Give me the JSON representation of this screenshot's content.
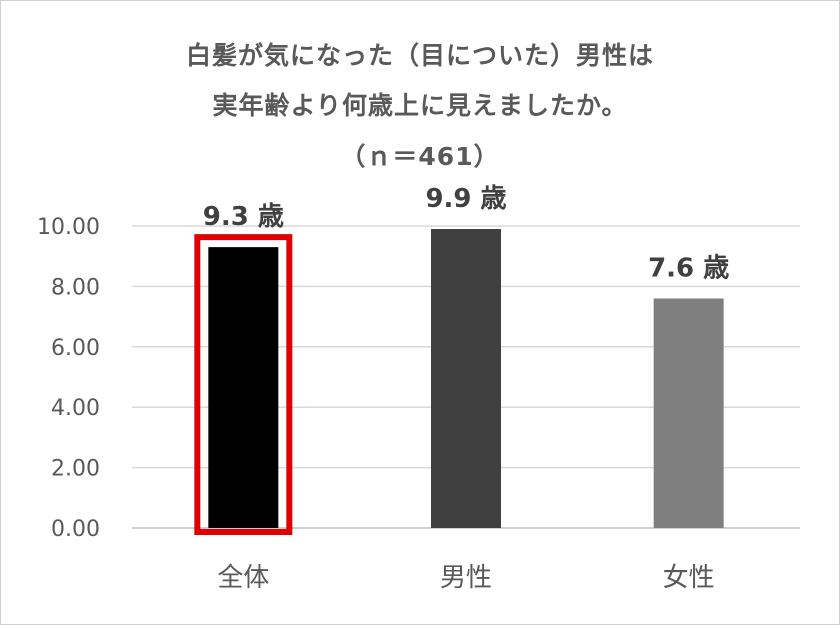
{
  "chart_data": {
    "type": "bar",
    "title_lines": [
      "白髪が気になった（目についた）男性は",
      "実年齢より何歳上に見えましたか。",
      "（ｎ＝461）"
    ],
    "categories": [
      "全体",
      "男性",
      "女性"
    ],
    "values": [
      9.3,
      9.9,
      7.6
    ],
    "data_labels": [
      "9.3 歳",
      "9.9 歳",
      "7.6 歳"
    ],
    "bar_colors": [
      "#000000",
      "#404040",
      "#7f7f7f"
    ],
    "highlight": {
      "category": "全体",
      "color": "#e00000"
    },
    "ylim": [
      0,
      10
    ],
    "yticks": [
      "0.00",
      "2.00",
      "4.00",
      "6.00",
      "8.00",
      "10.00"
    ],
    "grid": true,
    "legend": "none"
  }
}
